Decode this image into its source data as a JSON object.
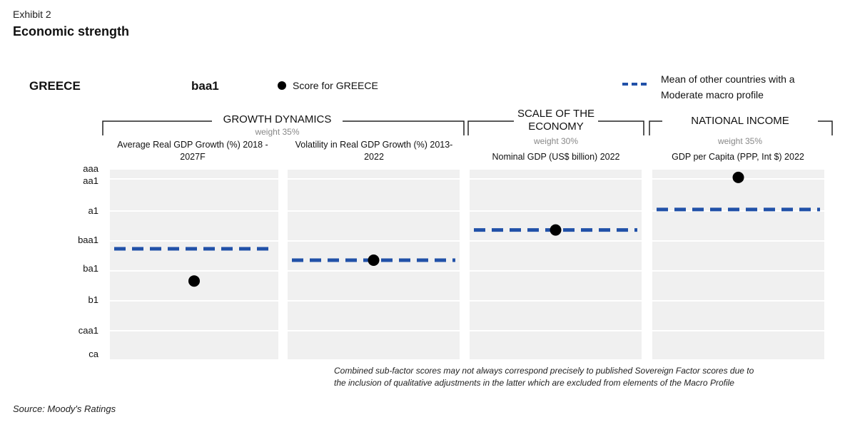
{
  "exhibit": "Exhibit 2",
  "title": "Economic strength",
  "country": "GREECE",
  "rating": "baa1",
  "legend": {
    "score_label": "Score for GREECE",
    "mean_label_line1": "Mean of other countries with a",
    "mean_label_line2": "Moderate macro profile"
  },
  "groups": {
    "growth": {
      "title": "GROWTH DYNAMICS",
      "weight": "weight 35%"
    },
    "scale": {
      "title_line1": "SCALE OF THE",
      "title_line2": "ECONOMY",
      "weight": "weight 30%"
    },
    "income": {
      "title": "NATIONAL INCOME",
      "weight": "weight 35%"
    }
  },
  "panels": [
    {
      "line1": "Average Real GDP Growth (%) 2018 -",
      "line2": "2027F"
    },
    {
      "line1": "Volatility in Real GDP Growth (%) 2013-",
      "line2": "2022"
    },
    {
      "line1": "Nominal GDP (US$ billion) 2022",
      "line2": ""
    },
    {
      "line1": "GDP per Capita (PPP, Int $) 2022",
      "line2": ""
    }
  ],
  "footnote_line1": "Combined sub-factor scores may not always correspond precisely to published Sovereign Factor scores due to",
  "footnote_line2": "the inclusion of qualitative adjustments in the latter which are excluded from elements of the Macro Profile",
  "source": "Source: Moody's Ratings",
  "colors": {
    "mean_line": "#2151a8",
    "score_dot": "#000000",
    "panel_bg": "#f0f0f0"
  },
  "chart_data": {
    "type": "scatter",
    "y_scale": [
      "aaa",
      "aa1",
      "a1",
      "baa1",
      "ba1",
      "b1",
      "caa1",
      "ca"
    ],
    "categories": [
      "Average Real GDP Growth (%) 2018 - 2027F",
      "Volatility in Real GDP Growth (%) 2013-2022",
      "Nominal GDP (US$ billion) 2022",
      "GDP per Capita (PPP, Int $) 2022"
    ],
    "series": [
      {
        "name": "Score for GREECE",
        "values": [
          4.4,
          3.7,
          2.65,
          0.7
        ]
      },
      {
        "name": "Mean of other countries with a Moderate macro profile",
        "values": [
          3.3,
          3.7,
          2.65,
          1.95
        ]
      }
    ],
    "y_note": "values are notch positions on the rating scale (0 = aaa, 1 = aa1, 2 = a1, 3 = baa1, 4 = ba1, 5 = b1, 6 = caa1, 7 = ca)"
  }
}
